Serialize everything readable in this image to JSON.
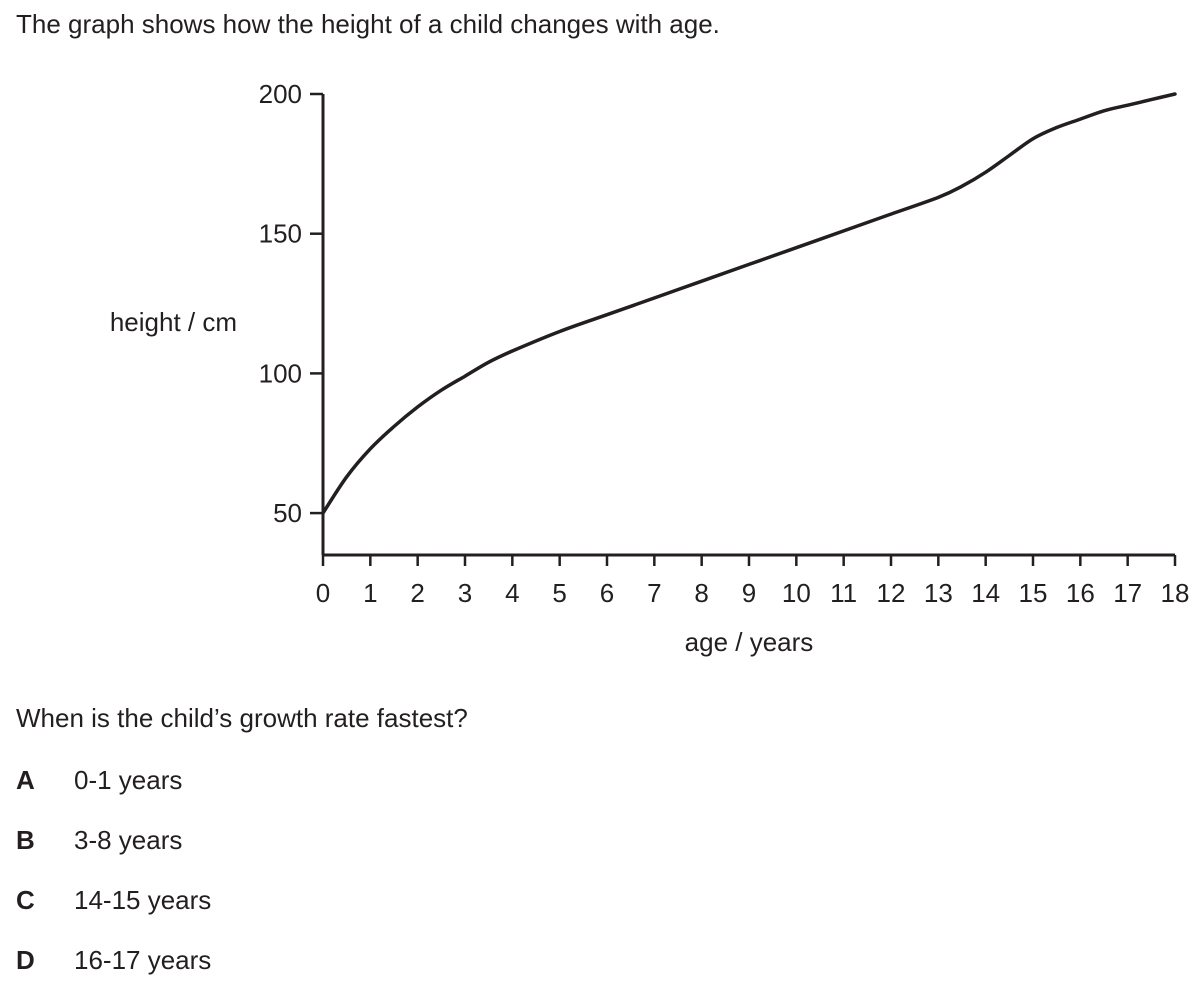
{
  "intro": "The graph shows how the height of a child changes with age.",
  "question": "When is the child’s growth rate fastest?",
  "options": [
    {
      "letter": "A",
      "text": "0-1 years"
    },
    {
      "letter": "B",
      "text": "3-8 years"
    },
    {
      "letter": "C",
      "text": "14-15 years"
    },
    {
      "letter": "D",
      "text": "16-17 years"
    }
  ],
  "chart_data": {
    "type": "line",
    "title": "",
    "xlabel": "age / years",
    "ylabel": "height / cm",
    "xlim": [
      0,
      18
    ],
    "ylim": [
      35,
      200
    ],
    "x_ticks": [
      0,
      1,
      2,
      3,
      4,
      5,
      6,
      7,
      8,
      9,
      10,
      11,
      12,
      13,
      14,
      15,
      16,
      17,
      18
    ],
    "y_ticks": [
      50,
      100,
      150,
      200
    ],
    "grid": false,
    "line_color": "#231f20",
    "series": [
      {
        "x": [
          0,
          0.5,
          1,
          1.5,
          2,
          2.5,
          3,
          3.5,
          4,
          5,
          6,
          7,
          8,
          9,
          10,
          11,
          12,
          13,
          13.5,
          14,
          14.5,
          15,
          15.5,
          16,
          16.5,
          17,
          17.5,
          18
        ],
        "values": [
          50,
          63,
          73,
          81,
          88,
          94,
          99,
          104,
          108,
          115,
          121,
          127,
          133,
          139,
          145,
          151,
          157,
          163,
          167,
          172,
          178,
          184,
          188,
          191,
          194,
          196,
          198,
          200
        ]
      }
    ]
  }
}
